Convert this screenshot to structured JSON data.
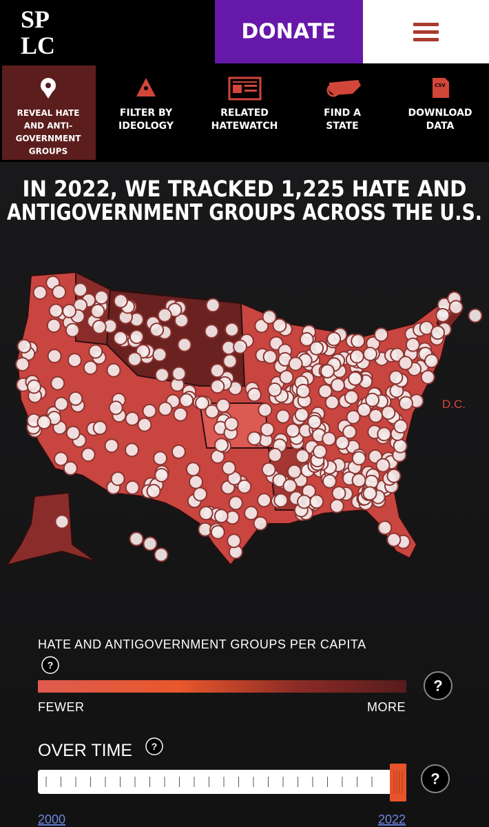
{
  "header": {
    "logo_top": "SP",
    "logo_bottom": "LC",
    "donate": "DONATE"
  },
  "nav": [
    {
      "lines": [
        "REVEAL HATE",
        "AND ANTI-",
        "GOVERNMENT",
        "GROUPS"
      ]
    },
    {
      "lines": [
        "FILTER BY",
        "IDEOLOGY"
      ]
    },
    {
      "lines": [
        "RELATED",
        "HATEWATCH"
      ]
    },
    {
      "lines": [
        "FIND A",
        "STATE"
      ]
    },
    {
      "lines": [
        "DOWNLOAD",
        "DATA"
      ],
      "icon_text": "CSV"
    }
  ],
  "headline": [
    "IN 2022, WE TRACKED 1,225 HATE AND",
    "ANTIGOVERNMENT GROUPS ACROSS THE U.S."
  ],
  "map": {
    "dc_label": "D.C."
  },
  "legend": {
    "title": "HATE AND ANTIGOVERNMENT GROUPS PER CAPITA",
    "help": "?",
    "low": "FEWER",
    "high": "MORE"
  },
  "timeline": {
    "title": "OVER TIME",
    "help": "?",
    "start": "2000",
    "end": "2022"
  }
}
